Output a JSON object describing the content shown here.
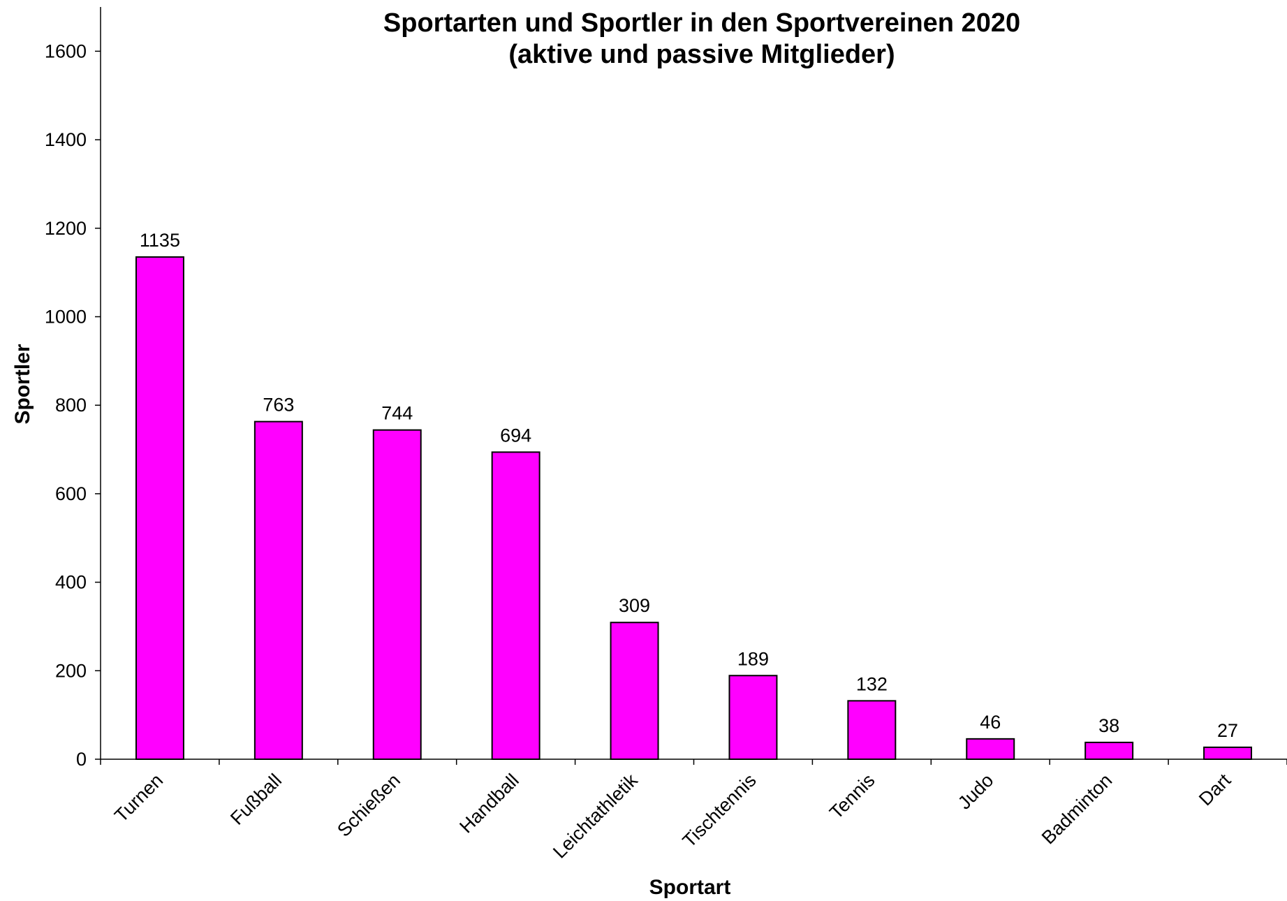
{
  "chart_data": {
    "type": "bar",
    "title": "Sportarten und Sportler in den Sportvereinen 2020",
    "subtitle": "(aktive und passive Mitglieder)",
    "xlabel": "Sportart",
    "ylabel": "Sportler",
    "categories": [
      "Turnen",
      "Fußball",
      "Schießen",
      "Handball",
      "Leichtathletik",
      "Tischtennis",
      "Tennis",
      "Judo",
      "Badminton",
      "Dart"
    ],
    "values": [
      1135,
      763,
      744,
      694,
      309,
      189,
      132,
      46,
      38,
      27
    ],
    "data_labels": [
      "1135",
      "763",
      "744",
      "694",
      "309",
      "189",
      "132",
      "46",
      "38",
      "27"
    ],
    "ylim": [
      0,
      1700
    ],
    "yticks": [
      0,
      200,
      400,
      600,
      800,
      1000,
      1200,
      1400,
      1600
    ],
    "ytick_labels": [
      "0",
      "200",
      "400",
      "600",
      "800",
      "1000",
      "1200",
      "1400",
      "1600"
    ],
    "grid": false,
    "legend": "none",
    "bar_color": "#ff00ff",
    "bar_edge_color": "#000000"
  }
}
